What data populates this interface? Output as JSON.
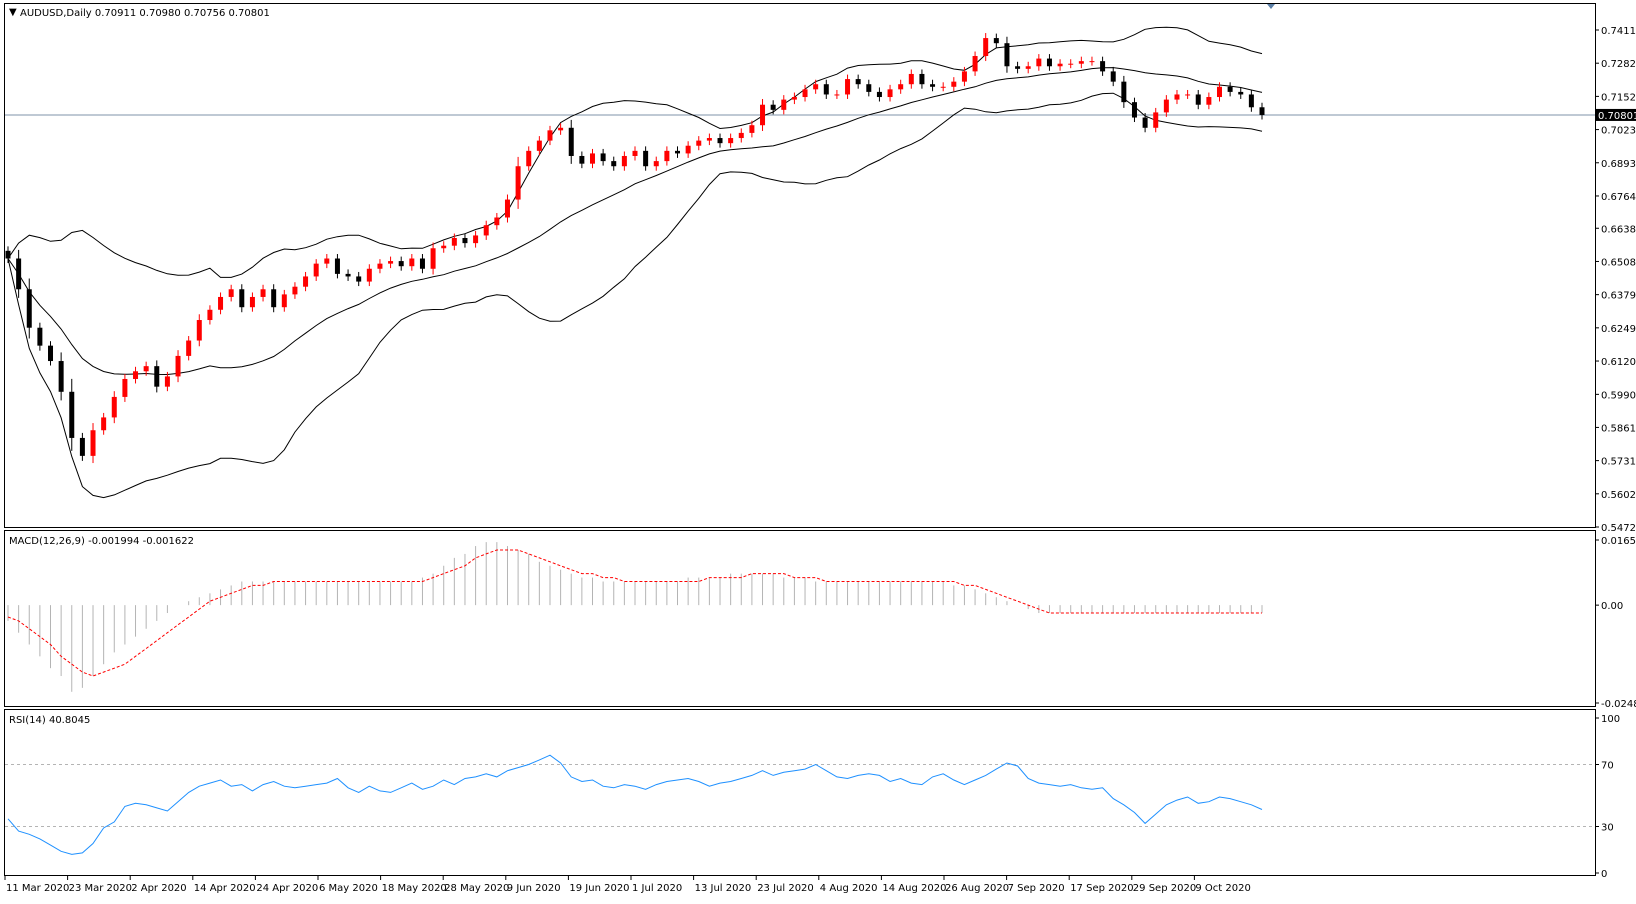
{
  "window": {
    "symbol_line": "AUDUSD,Daily  0.70911 0.70980 0.70756 0.70801",
    "dropdown_glyph": "▼"
  },
  "colors": {
    "background": "#ffffff",
    "bull_candle": "#ff0000",
    "bear_candle": "#000000",
    "bands": "#000000",
    "price_line": "#7f93a8",
    "macd_hist": "#b4b4b4",
    "macd_signal": "#ff0000",
    "rsi": "#1e90ff",
    "grid_dash": "#b4b4b4"
  },
  "price_axis": {
    "ticks": [
      "0.74115",
      "0.72820",
      "0.71525",
      "0.70230",
      "0.68935",
      "0.67640",
      "0.66380",
      "0.65085",
      "0.63790",
      "0.62495",
      "0.61200",
      "0.59900",
      "0.58610",
      "0.57315",
      "0.56020",
      "0.54725"
    ],
    "current_label": "0.70801",
    "current_price": 0.70801
  },
  "macd": {
    "label": "MACD(12,26,9) -0.001994 -0.001622",
    "ticks": [
      "0.016538",
      "0.00",
      "-0.024846"
    ]
  },
  "rsi": {
    "label": "RSI(14) 40.8045",
    "ticks": [
      "100",
      "70",
      "30",
      "0"
    ]
  },
  "date_labels": [
    "11 Mar 2020",
    "23 Mar 2020",
    "2 Apr 2020",
    "14 Apr 2020",
    "24 Apr 2020",
    "6 May 2020",
    "18 May 2020",
    "28 May 2020",
    "9 Jun 2020",
    "19 Jun 2020",
    "1 Jul 2020",
    "13 Jul 2020",
    "23 Jul 2020",
    "4 Aug 2020",
    "14 Aug 2020",
    "26 Aug 2020",
    "7 Sep 2020",
    "17 Sep 2020",
    "29 Sep 2020",
    "9 Oct 2020"
  ],
  "chart_data": [
    {
      "type": "candlestick",
      "title": "AUDUSD,Daily",
      "ylim": [
        0.54725,
        0.74115
      ],
      "x_range": [
        "11 Mar 2020",
        "20 Oct 2020"
      ],
      "overlays": [
        "Bollinger Bands (upper, middle, lower)"
      ],
      "close_series_approx": [
        0.652,
        0.64,
        0.625,
        0.618,
        0.612,
        0.6,
        0.582,
        0.575,
        0.585,
        0.59,
        0.598,
        0.605,
        0.608,
        0.61,
        0.602,
        0.606,
        0.614,
        0.62,
        0.628,
        0.632,
        0.637,
        0.64,
        0.633,
        0.637,
        0.64,
        0.633,
        0.638,
        0.641,
        0.645,
        0.65,
        0.652,
        0.646,
        0.645,
        0.643,
        0.648,
        0.65,
        0.651,
        0.649,
        0.652,
        0.648,
        0.656,
        0.657,
        0.66,
        0.658,
        0.661,
        0.665,
        0.668,
        0.675,
        0.688,
        0.694,
        0.698,
        0.702,
        0.703,
        0.692,
        0.689,
        0.693,
        0.69,
        0.688,
        0.692,
        0.694,
        0.688,
        0.69,
        0.694,
        0.693,
        0.696,
        0.698,
        0.699,
        0.697,
        0.699,
        0.701,
        0.704,
        0.712,
        0.71,
        0.714,
        0.715,
        0.718,
        0.72,
        0.716,
        0.716,
        0.722,
        0.72,
        0.717,
        0.715,
        0.718,
        0.72,
        0.724,
        0.72,
        0.719,
        0.719,
        0.721,
        0.725,
        0.731,
        0.738,
        0.736,
        0.727,
        0.726,
        0.727,
        0.73,
        0.727,
        0.728,
        0.728,
        0.729,
        0.729,
        0.725,
        0.721,
        0.713,
        0.707,
        0.703,
        0.709,
        0.714,
        0.716,
        0.716,
        0.712,
        0.715,
        0.719,
        0.717,
        0.716,
        0.711,
        0.708
      ]
    },
    {
      "type": "bar+line",
      "title": "MACD(12,26,9)",
      "ylim": [
        -0.024846,
        0.016538
      ],
      "series": [
        {
          "name": "MACD",
          "values": [
            -0.004,
            -0.007,
            -0.01,
            -0.013,
            -0.016,
            -0.018,
            -0.022,
            -0.021,
            -0.018,
            -0.015,
            -0.012,
            -0.01,
            -0.008,
            -0.006,
            -0.004,
            -0.002,
            0.0,
            0.001,
            0.002,
            0.003,
            0.004,
            0.005,
            0.006,
            0.006,
            0.006,
            0.006,
            0.006,
            0.006,
            0.006,
            0.006,
            0.006,
            0.006,
            0.006,
            0.006,
            0.006,
            0.006,
            0.006,
            0.006,
            0.006,
            0.007,
            0.008,
            0.01,
            0.012,
            0.013,
            0.015,
            0.016,
            0.016,
            0.015,
            0.014,
            0.013,
            0.011,
            0.01,
            0.009,
            0.008,
            0.007,
            0.007,
            0.006,
            0.006,
            0.006,
            0.006,
            0.006,
            0.006,
            0.006,
            0.006,
            0.007,
            0.007,
            0.007,
            0.007,
            0.008,
            0.008,
            0.008,
            0.008,
            0.008,
            0.007,
            0.007,
            0.007,
            0.006,
            0.006,
            0.006,
            0.006,
            0.006,
            0.006,
            0.006,
            0.006,
            0.006,
            0.006,
            0.006,
            0.006,
            0.006,
            0.005,
            0.005,
            0.004,
            0.003,
            0.002,
            0.001,
            0.0,
            -0.001,
            -0.002,
            -0.002,
            -0.002,
            -0.002,
            -0.002,
            -0.002,
            -0.002,
            -0.002,
            -0.002,
            -0.002,
            -0.002,
            -0.002,
            -0.002,
            -0.002,
            -0.002,
            -0.002,
            -0.002,
            -0.002,
            -0.002,
            -0.002,
            -0.002,
            -0.002
          ]
        },
        {
          "name": "Signal",
          "values": [
            -0.003,
            -0.004,
            -0.006,
            -0.008,
            -0.01,
            -0.013,
            -0.015,
            -0.017,
            -0.018,
            -0.017,
            -0.016,
            -0.015,
            -0.013,
            -0.011,
            -0.009,
            -0.007,
            -0.005,
            -0.003,
            -0.001,
            0.001,
            0.002,
            0.003,
            0.004,
            0.005,
            0.005,
            0.006,
            0.006,
            0.006,
            0.006,
            0.006,
            0.006,
            0.006,
            0.006,
            0.006,
            0.006,
            0.006,
            0.006,
            0.006,
            0.006,
            0.006,
            0.007,
            0.008,
            0.009,
            0.01,
            0.012,
            0.013,
            0.014,
            0.014,
            0.014,
            0.013,
            0.012,
            0.011,
            0.01,
            0.009,
            0.008,
            0.008,
            0.007,
            0.007,
            0.006,
            0.006,
            0.006,
            0.006,
            0.006,
            0.006,
            0.006,
            0.006,
            0.007,
            0.007,
            0.007,
            0.007,
            0.008,
            0.008,
            0.008,
            0.008,
            0.007,
            0.007,
            0.007,
            0.006,
            0.006,
            0.006,
            0.006,
            0.006,
            0.006,
            0.006,
            0.006,
            0.006,
            0.006,
            0.006,
            0.006,
            0.006,
            0.005,
            0.005,
            0.004,
            0.003,
            0.002,
            0.001,
            0.0,
            -0.001,
            -0.002,
            -0.002,
            -0.002,
            -0.002,
            -0.002,
            -0.002,
            -0.002,
            -0.002,
            -0.002,
            -0.002,
            -0.002,
            -0.002,
            -0.002,
            -0.002,
            -0.002,
            -0.002,
            -0.002,
            -0.002,
            -0.002,
            -0.002,
            -0.002
          ]
        }
      ]
    },
    {
      "type": "line",
      "title": "RSI(14)",
      "ylim": [
        0,
        100
      ],
      "levels": [
        70,
        30
      ],
      "values": [
        35,
        27,
        25,
        22,
        18,
        14,
        12,
        13,
        19,
        29,
        33,
        43,
        45,
        44,
        42,
        40,
        46,
        52,
        56,
        58,
        60,
        56,
        57,
        53,
        57,
        59,
        56,
        55,
        56,
        57,
        58,
        61,
        55,
        52,
        56,
        53,
        52,
        55,
        58,
        54,
        56,
        60,
        57,
        61,
        62,
        64,
        62,
        66,
        68,
        70,
        73,
        76,
        71,
        62,
        59,
        60,
        56,
        55,
        57,
        56,
        54,
        57,
        59,
        60,
        61,
        59,
        56,
        58,
        59,
        61,
        63,
        66,
        63,
        65,
        66,
        67,
        70,
        66,
        62,
        61,
        63,
        64,
        63,
        59,
        61,
        58,
        57,
        62,
        64,
        60,
        57,
        60,
        63,
        67,
        71,
        69,
        61,
        58,
        57,
        56,
        57,
        55,
        54,
        55,
        48,
        44,
        39,
        32,
        38,
        44,
        47,
        49,
        45,
        46,
        49,
        48,
        46,
        44,
        41
      ]
    }
  ]
}
